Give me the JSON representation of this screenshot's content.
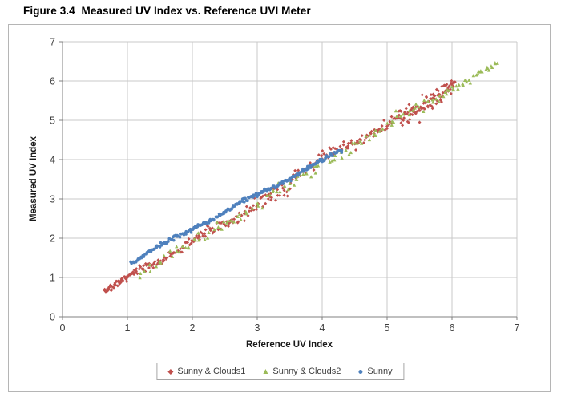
{
  "figure": {
    "title": "Figure 3.4  Measured UV Index vs. Reference UVI Meter"
  },
  "chart_data": {
    "type": "scatter",
    "title": "Measured UV Index vs. Reference UVI Meter",
    "xlabel": "Reference UV Index",
    "ylabel": "Measured UV Index",
    "xlim": [
      0,
      7
    ],
    "ylim": [
      0,
      7
    ],
    "xticks": [
      0,
      1,
      2,
      3,
      4,
      5,
      6,
      7
    ],
    "yticks": [
      0,
      1,
      2,
      3,
      4,
      5,
      6,
      7
    ],
    "grid": true,
    "gridline_color": "#c9c9c9",
    "axis_color": "#808080",
    "tick_label_color": "#3f3f3f",
    "legend_position": "bottom",
    "series": [
      {
        "name": "Sunny & Clouds1",
        "slug": "sunny-and-clouds1",
        "color": "#C0504D",
        "marker": "diamond",
        "marker_size": 2.0,
        "points": [
          [
            0.65,
            0.7
          ],
          [
            0.72,
            0.75
          ],
          [
            0.8,
            0.82
          ],
          [
            0.9,
            0.92
          ],
          [
            1.0,
            1.0
          ],
          [
            1.1,
            1.08
          ],
          [
            1.25,
            1.18
          ],
          [
            1.4,
            1.33
          ],
          [
            1.55,
            1.45
          ],
          [
            1.7,
            1.62
          ],
          [
            1.85,
            1.76
          ],
          [
            2.0,
            1.92
          ],
          [
            2.2,
            2.05
          ],
          [
            2.4,
            2.22
          ],
          [
            2.6,
            2.45
          ],
          [
            2.8,
            2.62
          ],
          [
            3.0,
            2.85
          ],
          [
            3.2,
            3.05
          ],
          [
            3.4,
            3.28
          ],
          [
            3.6,
            3.52
          ],
          [
            3.8,
            3.85
          ],
          [
            4.0,
            4.02
          ],
          [
            4.2,
            4.28
          ],
          [
            4.4,
            4.35
          ],
          [
            4.6,
            4.5
          ],
          [
            4.8,
            4.66
          ],
          [
            5.0,
            4.85
          ],
          [
            5.2,
            5.05
          ],
          [
            5.4,
            5.22
          ],
          [
            5.5,
            4.95
          ],
          [
            5.6,
            5.45
          ],
          [
            5.7,
            5.3
          ],
          [
            5.8,
            5.62
          ],
          [
            5.9,
            5.75
          ],
          [
            6.0,
            5.9
          ]
        ],
        "scatter_model": {
          "seed": 7,
          "wiggle": {
            "amp": 0.04,
            "freq": 6.5
          },
          "segments": [
            {
              "x0": 0.65,
              "x1": 1.15,
              "n": 50,
              "b0": 0.04,
              "b1": -0.02,
              "noise": 0.045
            },
            {
              "x0": 1.15,
              "x1": 2.3,
              "n": 75,
              "b0": -0.04,
              "b1": -0.1,
              "noise": 0.07
            },
            {
              "x0": 2.3,
              "x1": 3.55,
              "n": 65,
              "b0": -0.14,
              "b1": -0.16,
              "noise": 0.1
            },
            {
              "x0": 3.55,
              "x1": 4.5,
              "n": 50,
              "b0": 0.02,
              "b1": -0.02,
              "noise": 0.09
            },
            {
              "x0": 4.5,
              "x1": 5.15,
              "n": 32,
              "b0": -0.1,
              "b1": -0.14,
              "noise": 0.09
            },
            {
              "x0": 5.15,
              "x1": 6.05,
              "n": 95,
              "b0": -0.12,
              "b1": -0.14,
              "noise": 0.13
            }
          ]
        }
      },
      {
        "name": "Sunny & Clouds2",
        "slug": "sunny-and-clouds2",
        "color": "#9BBB59",
        "marker": "triangle",
        "marker_size": 2.3,
        "points": [
          [
            1.2,
            1.1
          ],
          [
            1.5,
            1.38
          ],
          [
            1.8,
            1.65
          ],
          [
            2.1,
            1.95
          ],
          [
            2.4,
            2.28
          ],
          [
            2.7,
            2.55
          ],
          [
            3.0,
            2.88
          ],
          [
            3.3,
            3.18
          ],
          [
            3.6,
            3.5
          ],
          [
            3.9,
            3.82
          ],
          [
            4.2,
            4.1
          ],
          [
            4.5,
            4.42
          ],
          [
            4.8,
            4.65
          ],
          [
            5.1,
            4.95
          ],
          [
            5.4,
            5.25
          ],
          [
            5.7,
            5.52
          ],
          [
            6.0,
            5.85
          ],
          [
            6.2,
            6.02
          ],
          [
            6.4,
            6.18
          ],
          [
            6.55,
            6.32
          ],
          [
            6.7,
            6.45
          ]
        ],
        "scatter_model": {
          "seed": 23,
          "wiggle": {
            "amp": 0.03,
            "freq": 4
          },
          "segments": [
            {
              "x0": 1.2,
              "x1": 2.0,
              "n": 16,
              "b0": -0.1,
              "b1": -0.12,
              "noise": 0.08
            },
            {
              "x0": 2.0,
              "x1": 3.3,
              "n": 26,
              "b0": -0.14,
              "b1": -0.12,
              "noise": 0.1
            },
            {
              "x0": 3.3,
              "x1": 4.6,
              "n": 30,
              "b0": -0.08,
              "b1": -0.1,
              "noise": 0.12
            },
            {
              "x0": 4.6,
              "x1": 5.8,
              "n": 26,
              "b0": -0.12,
              "b1": -0.16,
              "noise": 0.11
            },
            {
              "x0": 5.8,
              "x1": 6.7,
              "n": 30,
              "b0": -0.2,
              "b1": -0.24,
              "noise": 0.05
            }
          ]
        }
      },
      {
        "name": "Sunny",
        "slug": "sunny",
        "color": "#4F81BD",
        "marker": "circle",
        "marker_size": 1.8,
        "points": [
          [
            1.05,
            1.4
          ],
          [
            1.3,
            1.62
          ],
          [
            1.6,
            1.88
          ],
          [
            1.9,
            2.14
          ],
          [
            2.2,
            2.41
          ],
          [
            2.5,
            2.66
          ],
          [
            2.8,
            2.92
          ],
          [
            3.1,
            3.18
          ],
          [
            3.4,
            3.45
          ],
          [
            3.7,
            3.7
          ],
          [
            4.0,
            3.95
          ],
          [
            4.3,
            4.18
          ]
        ],
        "scatter_model": {
          "seed": 42,
          "wiggle": {
            "amp": 0.035,
            "freq": 5
          },
          "segments": [
            {
              "x0": 1.05,
              "x1": 2.0,
              "n": 70,
              "b0": 0.33,
              "b1": 0.24,
              "noise": 0.03
            },
            {
              "x0": 2.0,
              "x1": 3.0,
              "n": 75,
              "b0": 0.24,
              "b1": 0.1,
              "noise": 0.03
            },
            {
              "x0": 3.0,
              "x1": 3.8,
              "n": 60,
              "b0": 0.1,
              "b1": 0.0,
              "noise": 0.03
            },
            {
              "x0": 3.8,
              "x1": 4.3,
              "n": 40,
              "b0": 0.0,
              "b1": -0.08,
              "noise": 0.03
            }
          ]
        }
      }
    ]
  }
}
